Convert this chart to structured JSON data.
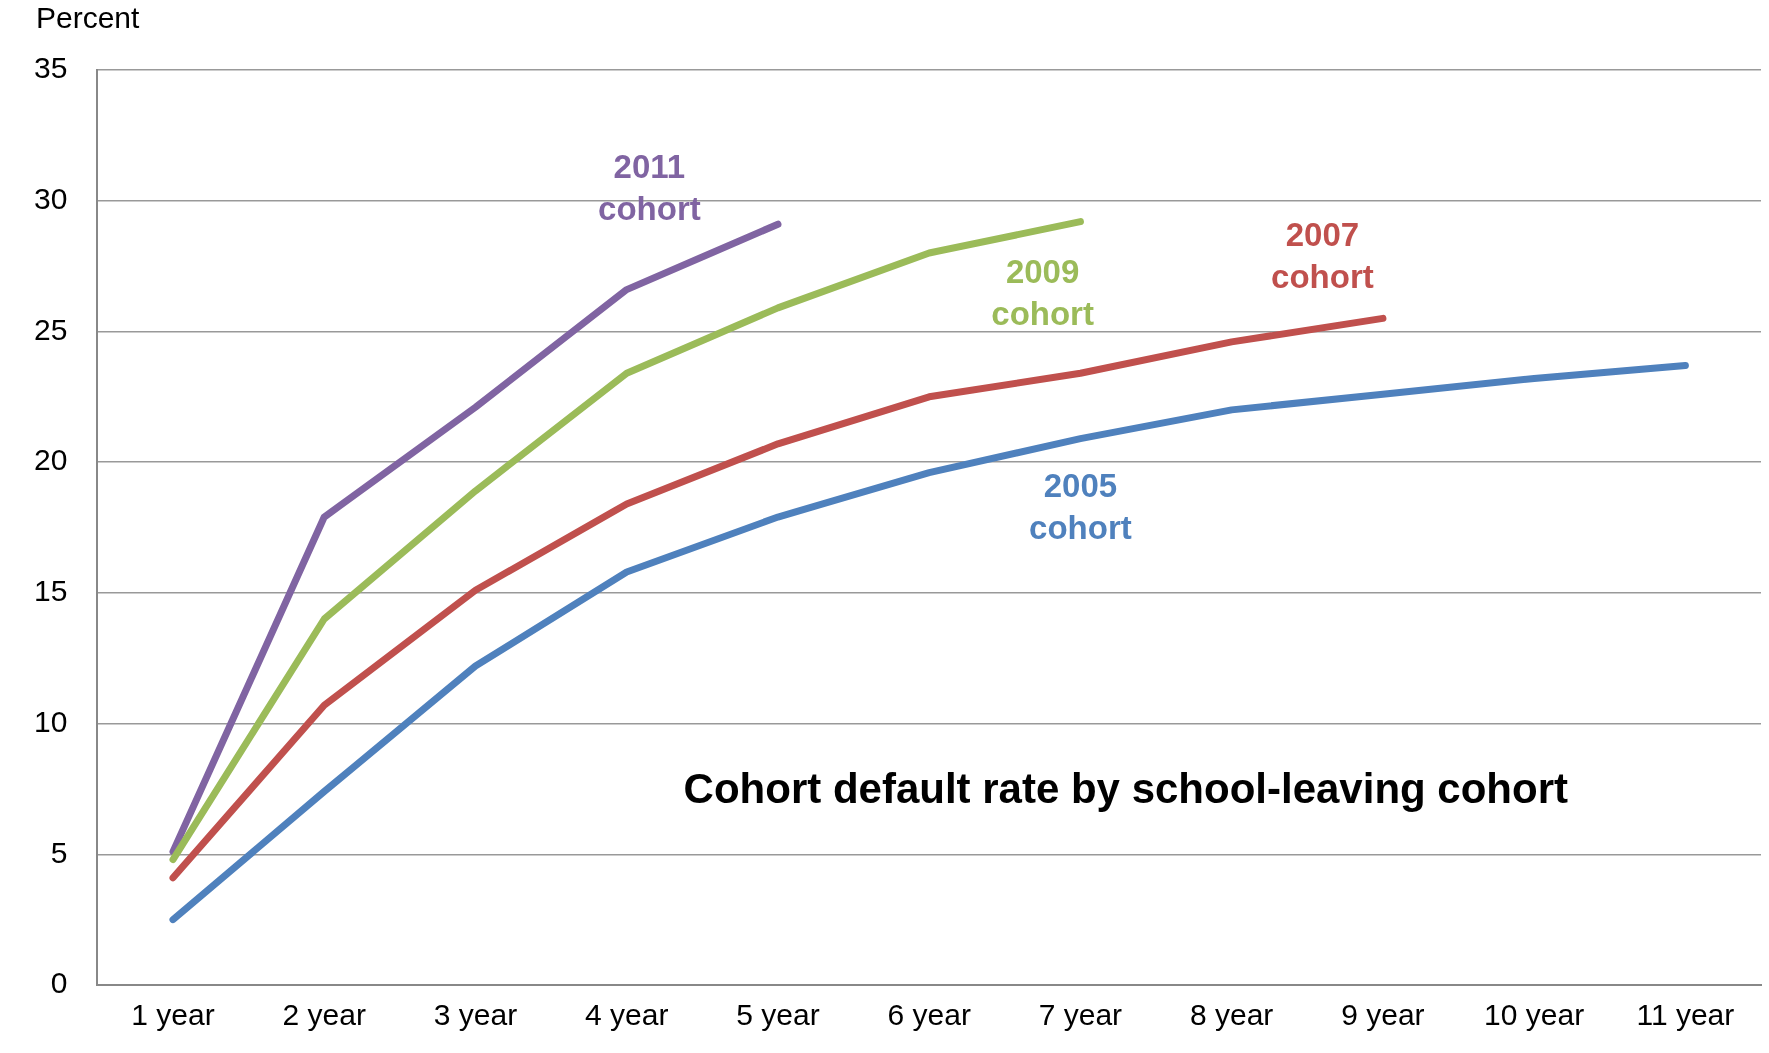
{
  "chart_data": {
    "type": "line",
    "title": "Cohort default rate by school-leaving cohort",
    "ylabel": "Percent",
    "categories": [
      "1 year",
      "2 year",
      "3 year",
      "4 year",
      "5 year",
      "6 year",
      "7 year",
      "8 year",
      "9 year",
      "10 year",
      "11 year"
    ],
    "series": [
      {
        "name": "2005 cohort",
        "color": "#4f81bd",
        "values": [
          2.5,
          7.4,
          12.2,
          15.8,
          17.9,
          19.6,
          20.9,
          22.0,
          22.6,
          23.2,
          23.7
        ]
      },
      {
        "name": "2007 cohort",
        "color": "#c0504d",
        "values": [
          4.1,
          10.7,
          15.1,
          18.4,
          20.7,
          22.5,
          23.4,
          24.6,
          25.5,
          null,
          null
        ]
      },
      {
        "name": "2009 cohort",
        "color": "#9bbb59",
        "values": [
          4.8,
          14.0,
          18.9,
          23.4,
          25.9,
          28.0,
          29.2,
          null,
          null,
          null,
          null
        ]
      },
      {
        "name": "2011 cohort",
        "color": "#8064a2",
        "values": [
          5.1,
          17.9,
          22.1,
          26.6,
          29.1,
          null,
          null,
          null,
          null,
          null,
          null
        ]
      }
    ],
    "ylim": [
      0,
      35
    ],
    "yticks": [
      0,
      5,
      10,
      15,
      20,
      25,
      30,
      35
    ],
    "grid": "y",
    "legend": false,
    "marker": "none",
    "line_style": "solid"
  }
}
